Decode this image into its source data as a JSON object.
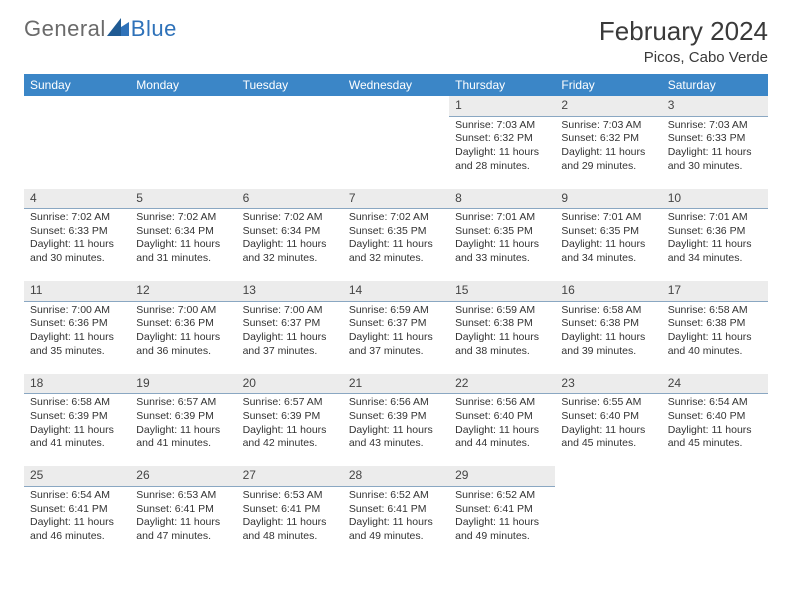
{
  "brand": {
    "part1": "General",
    "part2": "Blue"
  },
  "title": "February 2024",
  "location": "Picos, Cabo Verde",
  "colors": {
    "header_bg": "#3b86c7",
    "header_fg": "#ffffff",
    "daynum_bg": "#ececec",
    "daynum_border": "#8aa7c2",
    "logo_gray": "#6a6a6a",
    "logo_blue": "#2f72b9",
    "triangle_fill": "#2f72b9"
  },
  "weekdays": [
    "Sunday",
    "Monday",
    "Tuesday",
    "Wednesday",
    "Thursday",
    "Friday",
    "Saturday"
  ],
  "weeks": [
    [
      null,
      null,
      null,
      null,
      {
        "n": "1",
        "sr": "7:03 AM",
        "ss": "6:32 PM",
        "dl": "11 hours and 28 minutes."
      },
      {
        "n": "2",
        "sr": "7:03 AM",
        "ss": "6:32 PM",
        "dl": "11 hours and 29 minutes."
      },
      {
        "n": "3",
        "sr": "7:03 AM",
        "ss": "6:33 PM",
        "dl": "11 hours and 30 minutes."
      }
    ],
    [
      {
        "n": "4",
        "sr": "7:02 AM",
        "ss": "6:33 PM",
        "dl": "11 hours and 30 minutes."
      },
      {
        "n": "5",
        "sr": "7:02 AM",
        "ss": "6:34 PM",
        "dl": "11 hours and 31 minutes."
      },
      {
        "n": "6",
        "sr": "7:02 AM",
        "ss": "6:34 PM",
        "dl": "11 hours and 32 minutes."
      },
      {
        "n": "7",
        "sr": "7:02 AM",
        "ss": "6:35 PM",
        "dl": "11 hours and 32 minutes."
      },
      {
        "n": "8",
        "sr": "7:01 AM",
        "ss": "6:35 PM",
        "dl": "11 hours and 33 minutes."
      },
      {
        "n": "9",
        "sr": "7:01 AM",
        "ss": "6:35 PM",
        "dl": "11 hours and 34 minutes."
      },
      {
        "n": "10",
        "sr": "7:01 AM",
        "ss": "6:36 PM",
        "dl": "11 hours and 34 minutes."
      }
    ],
    [
      {
        "n": "11",
        "sr": "7:00 AM",
        "ss": "6:36 PM",
        "dl": "11 hours and 35 minutes."
      },
      {
        "n": "12",
        "sr": "7:00 AM",
        "ss": "6:36 PM",
        "dl": "11 hours and 36 minutes."
      },
      {
        "n": "13",
        "sr": "7:00 AM",
        "ss": "6:37 PM",
        "dl": "11 hours and 37 minutes."
      },
      {
        "n": "14",
        "sr": "6:59 AM",
        "ss": "6:37 PM",
        "dl": "11 hours and 37 minutes."
      },
      {
        "n": "15",
        "sr": "6:59 AM",
        "ss": "6:38 PM",
        "dl": "11 hours and 38 minutes."
      },
      {
        "n": "16",
        "sr": "6:58 AM",
        "ss": "6:38 PM",
        "dl": "11 hours and 39 minutes."
      },
      {
        "n": "17",
        "sr": "6:58 AM",
        "ss": "6:38 PM",
        "dl": "11 hours and 40 minutes."
      }
    ],
    [
      {
        "n": "18",
        "sr": "6:58 AM",
        "ss": "6:39 PM",
        "dl": "11 hours and 41 minutes."
      },
      {
        "n": "19",
        "sr": "6:57 AM",
        "ss": "6:39 PM",
        "dl": "11 hours and 41 minutes."
      },
      {
        "n": "20",
        "sr": "6:57 AM",
        "ss": "6:39 PM",
        "dl": "11 hours and 42 minutes."
      },
      {
        "n": "21",
        "sr": "6:56 AM",
        "ss": "6:39 PM",
        "dl": "11 hours and 43 minutes."
      },
      {
        "n": "22",
        "sr": "6:56 AM",
        "ss": "6:40 PM",
        "dl": "11 hours and 44 minutes."
      },
      {
        "n": "23",
        "sr": "6:55 AM",
        "ss": "6:40 PM",
        "dl": "11 hours and 45 minutes."
      },
      {
        "n": "24",
        "sr": "6:54 AM",
        "ss": "6:40 PM",
        "dl": "11 hours and 45 minutes."
      }
    ],
    [
      {
        "n": "25",
        "sr": "6:54 AM",
        "ss": "6:41 PM",
        "dl": "11 hours and 46 minutes."
      },
      {
        "n": "26",
        "sr": "6:53 AM",
        "ss": "6:41 PM",
        "dl": "11 hours and 47 minutes."
      },
      {
        "n": "27",
        "sr": "6:53 AM",
        "ss": "6:41 PM",
        "dl": "11 hours and 48 minutes."
      },
      {
        "n": "28",
        "sr": "6:52 AM",
        "ss": "6:41 PM",
        "dl": "11 hours and 49 minutes."
      },
      {
        "n": "29",
        "sr": "6:52 AM",
        "ss": "6:41 PM",
        "dl": "11 hours and 49 minutes."
      },
      null,
      null
    ]
  ],
  "labels": {
    "sunrise": "Sunrise:",
    "sunset": "Sunset:",
    "daylight": "Daylight:"
  }
}
